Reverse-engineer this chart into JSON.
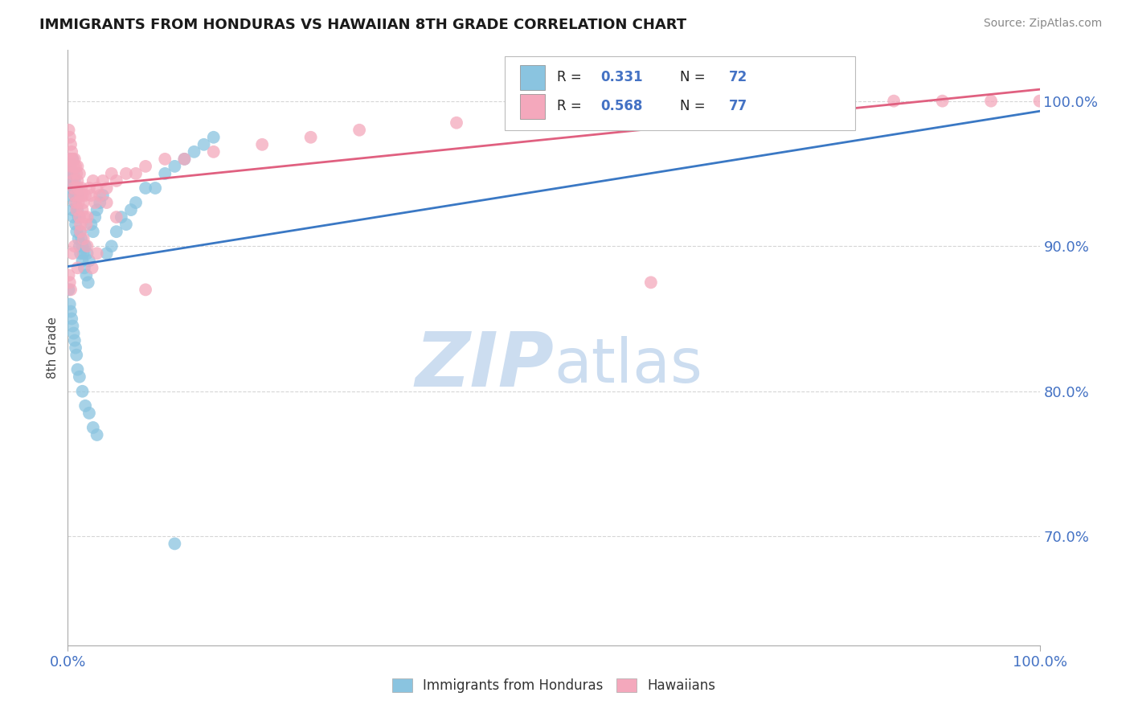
{
  "title": "IMMIGRANTS FROM HONDURAS VS HAWAIIAN 8TH GRADE CORRELATION CHART",
  "source_text": "Source: ZipAtlas.com",
  "ylabel": "8th Grade",
  "xlim": [
    0.0,
    1.0
  ],
  "ylim": [
    0.625,
    1.035
  ],
  "y_tick_values": [
    0.7,
    0.8,
    0.9,
    1.0
  ],
  "y_tick_labels": [
    "70.0%",
    "80.0%",
    "90.0%",
    "100.0%"
  ],
  "legend_label1": "Immigrants from Honduras",
  "legend_label2": "Hawaiians",
  "color_blue": "#8ac4e0",
  "color_pink": "#f4a8bc",
  "color_blue_line": "#3a78c4",
  "color_pink_line": "#e06080",
  "background_color": "#ffffff",
  "watermark_zip": "ZIP",
  "watermark_atlas": "atlas",
  "watermark_color": "#ccddf0",
  "blue_x": [
    0.001,
    0.002,
    0.002,
    0.003,
    0.003,
    0.004,
    0.005,
    0.005,
    0.006,
    0.006,
    0.007,
    0.007,
    0.008,
    0.008,
    0.009,
    0.009,
    0.01,
    0.01,
    0.011,
    0.011,
    0.012,
    0.012,
    0.013,
    0.013,
    0.014,
    0.015,
    0.015,
    0.016,
    0.017,
    0.018,
    0.019,
    0.02,
    0.021,
    0.022,
    0.024,
    0.026,
    0.028,
    0.03,
    0.033,
    0.036,
    0.04,
    0.045,
    0.05,
    0.055,
    0.06,
    0.065,
    0.07,
    0.08,
    0.09,
    0.1,
    0.11,
    0.12,
    0.13,
    0.14,
    0.15,
    0.001,
    0.002,
    0.003,
    0.004,
    0.005,
    0.006,
    0.007,
    0.008,
    0.009,
    0.01,
    0.012,
    0.015,
    0.018,
    0.022,
    0.026,
    0.03,
    0.11
  ],
  "blue_y": [
    0.96,
    0.955,
    0.94,
    0.95,
    0.935,
    0.945,
    0.96,
    0.925,
    0.95,
    0.92,
    0.945,
    0.93,
    0.935,
    0.915,
    0.94,
    0.91,
    0.935,
    0.925,
    0.92,
    0.905,
    0.92,
    0.9,
    0.91,
    0.895,
    0.905,
    0.9,
    0.89,
    0.895,
    0.885,
    0.9,
    0.88,
    0.895,
    0.875,
    0.89,
    0.915,
    0.91,
    0.92,
    0.925,
    0.93,
    0.935,
    0.895,
    0.9,
    0.91,
    0.92,
    0.915,
    0.925,
    0.93,
    0.94,
    0.94,
    0.95,
    0.955,
    0.96,
    0.965,
    0.97,
    0.975,
    0.87,
    0.86,
    0.855,
    0.85,
    0.845,
    0.84,
    0.835,
    0.83,
    0.825,
    0.815,
    0.81,
    0.8,
    0.79,
    0.785,
    0.775,
    0.77,
    0.695
  ],
  "pink_x": [
    0.001,
    0.002,
    0.002,
    0.003,
    0.003,
    0.004,
    0.004,
    0.005,
    0.005,
    0.006,
    0.006,
    0.007,
    0.007,
    0.008,
    0.008,
    0.009,
    0.009,
    0.01,
    0.01,
    0.011,
    0.011,
    0.012,
    0.012,
    0.013,
    0.013,
    0.014,
    0.015,
    0.015,
    0.016,
    0.017,
    0.018,
    0.019,
    0.02,
    0.022,
    0.024,
    0.026,
    0.028,
    0.03,
    0.033,
    0.036,
    0.04,
    0.045,
    0.05,
    0.06,
    0.07,
    0.08,
    0.1,
    0.12,
    0.15,
    0.2,
    0.25,
    0.3,
    0.4,
    0.5,
    0.6,
    0.7,
    0.75,
    0.8,
    0.85,
    0.9,
    0.95,
    1.0,
    0.001,
    0.002,
    0.003,
    0.005,
    0.007,
    0.01,
    0.013,
    0.016,
    0.02,
    0.025,
    0.03,
    0.04,
    0.05,
    0.08,
    0.6
  ],
  "pink_y": [
    0.98,
    0.975,
    0.96,
    0.97,
    0.955,
    0.965,
    0.95,
    0.96,
    0.945,
    0.955,
    0.94,
    0.96,
    0.935,
    0.955,
    0.93,
    0.95,
    0.925,
    0.955,
    0.945,
    0.94,
    0.93,
    0.95,
    0.92,
    0.935,
    0.915,
    0.94,
    0.935,
    0.925,
    0.93,
    0.92,
    0.935,
    0.915,
    0.92,
    0.94,
    0.935,
    0.945,
    0.93,
    0.94,
    0.935,
    0.945,
    0.94,
    0.95,
    0.945,
    0.95,
    0.95,
    0.955,
    0.96,
    0.96,
    0.965,
    0.97,
    0.975,
    0.98,
    0.985,
    0.985,
    0.99,
    0.99,
    0.995,
    0.998,
    1.0,
    1.0,
    1.0,
    1.0,
    0.88,
    0.875,
    0.87,
    0.895,
    0.9,
    0.885,
    0.91,
    0.905,
    0.9,
    0.885,
    0.895,
    0.93,
    0.92,
    0.87,
    0.875
  ],
  "blue_line_x0": 0.0,
  "blue_line_x1": 1.0,
  "blue_line_y0": 0.886,
  "blue_line_y1": 0.993,
  "pink_line_x0": 0.0,
  "pink_line_x1": 1.0,
  "pink_line_y0": 0.94,
  "pink_line_y1": 1.008
}
